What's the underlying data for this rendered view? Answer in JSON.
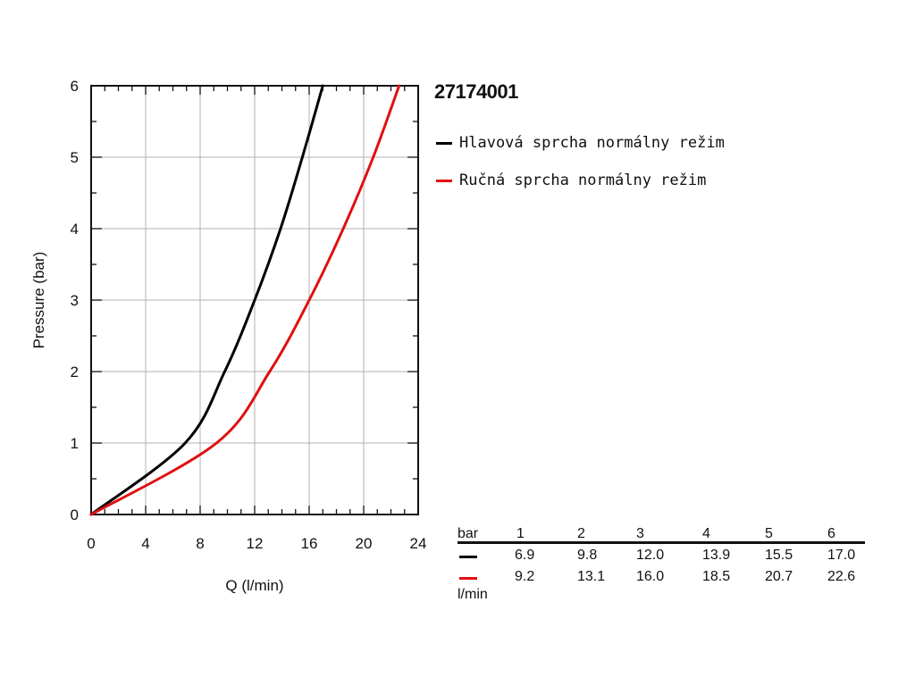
{
  "chart_data": {
    "type": "line",
    "title": "27174001",
    "xlabel": "Q (l/min)",
    "ylabel": "Pressure (bar)",
    "xlim": [
      0,
      24
    ],
    "ylim": [
      0,
      6
    ],
    "xticks": [
      "0",
      "4",
      "8",
      "12",
      "16",
      "20",
      "24"
    ],
    "yticks": [
      "0",
      "1",
      "2",
      "3",
      "4",
      "5",
      "6"
    ],
    "grid": true,
    "legend_position": "right",
    "series": [
      {
        "name": "Hlavová sprcha normálny režim",
        "color": "#000000",
        "x": [
          0,
          6.9,
          9.8,
          12.0,
          13.9,
          15.5,
          17.0
        ],
        "y": [
          0,
          1,
          2,
          3,
          4,
          5,
          6
        ]
      },
      {
        "name": "Ručná sprcha normálny režim",
        "color": "#e01010",
        "x": [
          0,
          9.2,
          13.1,
          16.0,
          18.5,
          20.7,
          22.6
        ],
        "y": [
          0,
          1,
          2,
          3,
          4,
          5,
          6
        ]
      }
    ]
  },
  "table": {
    "unit_bar": "bar",
    "unit_flow": "l/min",
    "pressures": [
      "1",
      "2",
      "3",
      "4",
      "5",
      "6"
    ],
    "rows": [
      {
        "color": "#000000",
        "values": [
          "6.9",
          "9.8",
          "12.0",
          "13.9",
          "15.5",
          "17.0"
        ]
      },
      {
        "color": "#e01010",
        "values": [
          "9.2",
          "13.1",
          "16.0",
          "18.5",
          "20.7",
          "22.6"
        ]
      }
    ]
  }
}
